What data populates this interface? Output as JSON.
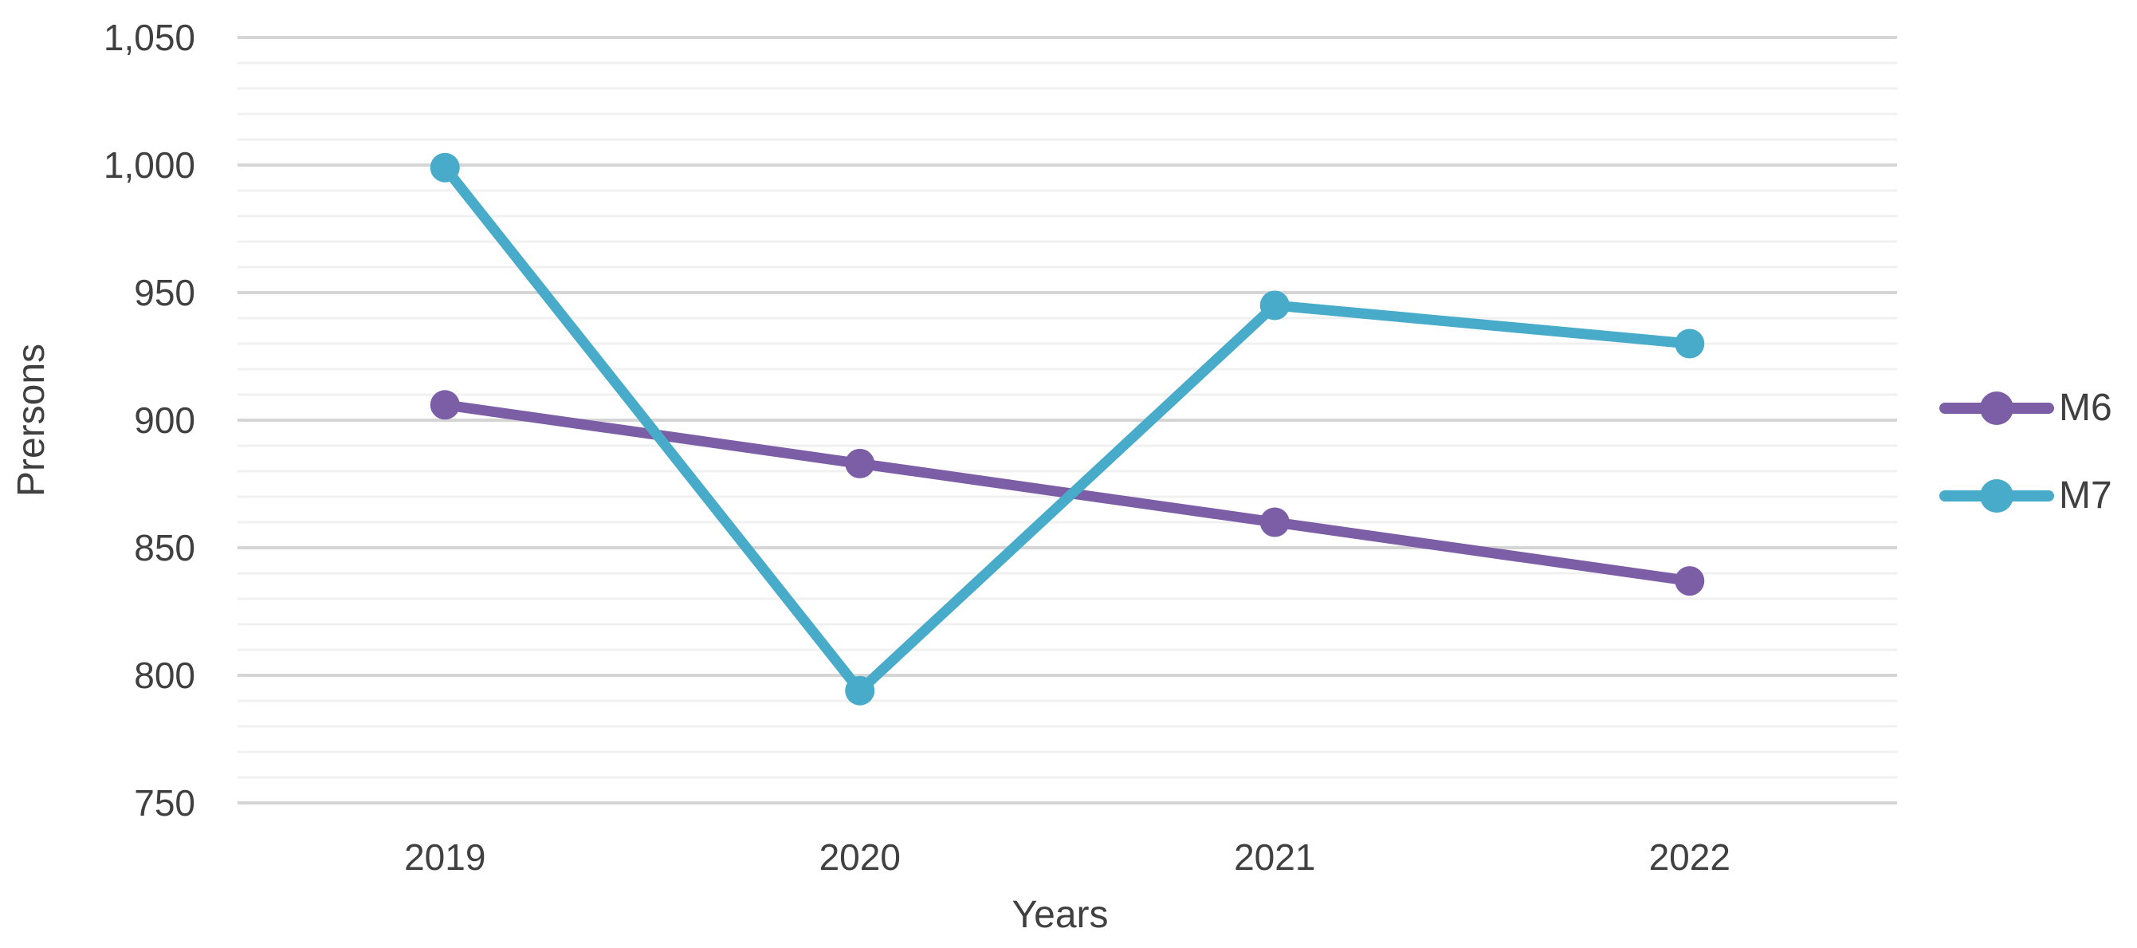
{
  "chart_data": {
    "type": "line",
    "title": "",
    "xlabel": "Years",
    "ylabel": "Prersons",
    "categories": [
      "2019",
      "2020",
      "2021",
      "2022"
    ],
    "series": [
      {
        "name": "M6",
        "color": "#7C5EA6",
        "values": [
          906,
          883,
          860,
          837
        ]
      },
      {
        "name": "M7",
        "color": "#47ABC9",
        "values": [
          999,
          794,
          945,
          930
        ]
      }
    ],
    "ylim": [
      750,
      1050
    ],
    "y_major_step": 50,
    "y_minor_step": 10,
    "y_major_tick_labels": [
      "750",
      "800",
      "850",
      "900",
      "950",
      "1,000",
      "1,050"
    ],
    "grid": "horizontal, major and minor lines, no vertical gridlines",
    "legend_position": "right",
    "marker": "filled-circle"
  },
  "colors": {
    "background": "#FFFFFF",
    "major_gridline": "#D5D5D5",
    "minor_gridline": "#F0F0F0",
    "text": "#404040",
    "series_m6": "#7C5EA6",
    "series_m7": "#47ABC9"
  }
}
